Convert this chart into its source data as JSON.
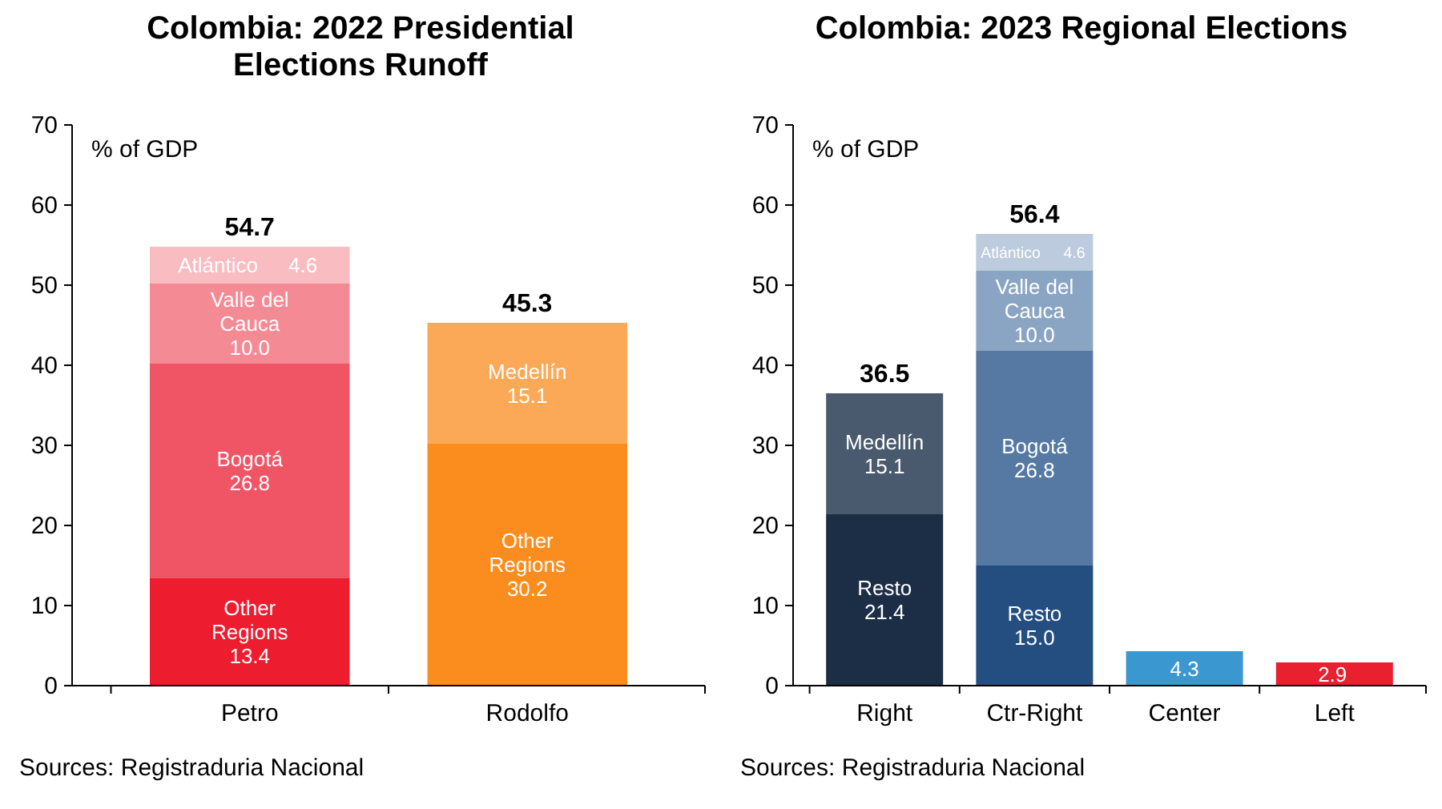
{
  "chart_data": [
    {
      "type": "bar",
      "title": "Colombia: 2022 Presidential Elections Runoff",
      "ylabel": "% of GDP",
      "categories": [
        "Petro",
        "Rodolfo"
      ],
      "stacked": true,
      "ylim": [
        0,
        70
      ],
      "yticks": [
        0,
        10,
        20,
        30,
        40,
        50,
        60,
        70
      ],
      "series": [
        {
          "name": "Other Regions",
          "values": [
            13.4,
            30.2
          ],
          "value_labels": [
            "13.4",
            "30.2"
          ],
          "colors": [
            "#ed1c2e",
            "#fb8c1e"
          ]
        },
        {
          "name": "Bogotá",
          "values": [
            26.8,
            null
          ],
          "value_labels": [
            "26.8",
            null
          ],
          "colors": [
            "#f05565",
            null
          ]
        },
        {
          "name": "Valle del Cauca",
          "values": [
            10.0,
            null
          ],
          "value_labels": [
            "10.0",
            null
          ],
          "colors": [
            "#f48a94",
            null
          ]
        },
        {
          "name": "Atlántico",
          "values": [
            4.6,
            null
          ],
          "value_labels": [
            "4.6",
            null
          ],
          "colors": [
            "#f9bcc1",
            null
          ]
        },
        {
          "name": "Medellín",
          "values": [
            null,
            15.1
          ],
          "value_labels": [
            null,
            "15.1"
          ],
          "colors": [
            null,
            "#fca957"
          ]
        }
      ],
      "totals": [
        "54.7",
        "45.3"
      ],
      "annotations": [
        "Sources: Registraduria Nacional"
      ]
    },
    {
      "type": "bar",
      "title": "Colombia: 2023 Regional Elections",
      "ylabel": "% of GDP",
      "categories": [
        "Right",
        "Ctr-Right",
        "Center",
        "Left"
      ],
      "stacked": true,
      "ylim": [
        0,
        70
      ],
      "yticks": [
        0,
        10,
        20,
        30,
        40,
        50,
        60,
        70
      ],
      "series": [
        {
          "name": "Resto",
          "values": [
            21.4,
            15.0,
            null,
            null
          ],
          "value_labels": [
            "21.4",
            "15.0",
            null,
            null
          ],
          "colors": [
            "#1c2e45",
            "#244e80",
            null,
            null
          ]
        },
        {
          "name": "Medellín",
          "values": [
            15.1,
            null,
            null,
            null
          ],
          "value_labels": [
            "15.1",
            null,
            null,
            null
          ],
          "colors": [
            "#4a5a6e",
            null,
            null,
            null
          ]
        },
        {
          "name": "Bogotá",
          "values": [
            null,
            26.8,
            null,
            null
          ],
          "value_labels": [
            null,
            "26.8",
            null,
            null
          ],
          "colors": [
            null,
            "#5579a3",
            null,
            null
          ]
        },
        {
          "name": "Valle del Cauca",
          "values": [
            null,
            10.0,
            null,
            null
          ],
          "value_labels": [
            null,
            "10.0",
            null,
            null
          ],
          "colors": [
            null,
            "#8aa5c4",
            null,
            null
          ]
        },
        {
          "name": "Atlántico",
          "values": [
            null,
            4.6,
            null,
            null
          ],
          "value_labels": [
            null,
            "4.6",
            null,
            null
          ],
          "colors": [
            null,
            "#bccbdd",
            null,
            null
          ]
        },
        {
          "values": [
            null,
            null,
            4.3,
            2.9
          ],
          "value_labels": [
            null,
            null,
            "4.3",
            "2.9"
          ],
          "colors": [
            null,
            null,
            "#3b97cf",
            "#e8202f"
          ]
        }
      ],
      "totals": [
        "36.5",
        "56.4",
        null,
        null
      ],
      "annotations": [
        "Sources: Registraduria Nacional"
      ]
    }
  ]
}
